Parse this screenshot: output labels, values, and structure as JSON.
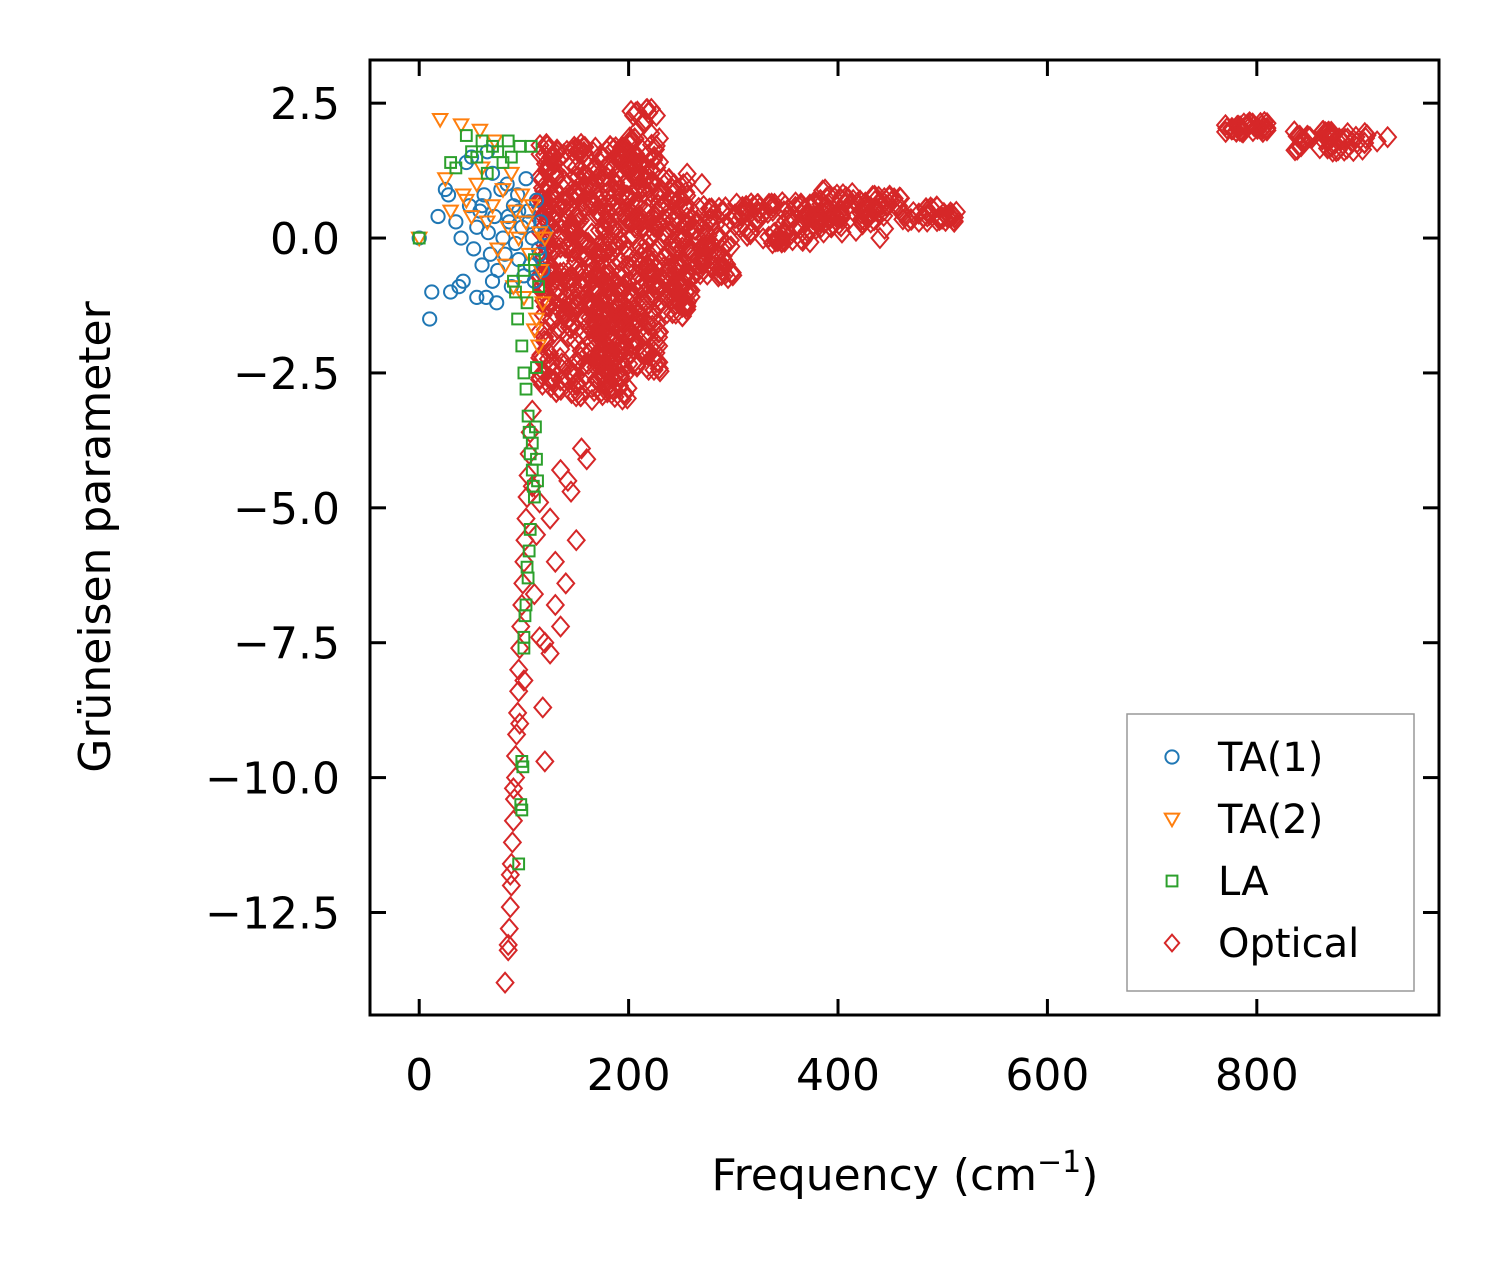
{
  "chart_data": {
    "type": "scatter",
    "title": "",
    "xlabel": "Frequency (cm",
    "xlabel_sup": "−1",
    "xlabel_suffix": ")",
    "ylabel": "Grüneisen parameter",
    "xlim": [
      -47,
      974
    ],
    "ylim": [
      -14.4,
      3.3
    ],
    "xticks": [
      0,
      200,
      400,
      600,
      800
    ],
    "xtick_labels": [
      "0",
      "200",
      "400",
      "600",
      "800"
    ],
    "yticks": [
      2.5,
      0.0,
      -2.5,
      -5.0,
      -7.5,
      -10.0,
      -12.5
    ],
    "ytick_labels": [
      "2.5",
      "0.0",
      "−2.5",
      "−5.0",
      "−7.5",
      "−10.0",
      "−12.5"
    ],
    "grid": false,
    "legend_position": "lower-right",
    "series": [
      {
        "name": "TA(1)",
        "marker": "circle",
        "color": "#1f77b4",
        "points": [
          [
            0,
            0.0
          ],
          [
            10,
            -1.5
          ],
          [
            12,
            -1.0
          ],
          [
            18,
            0.4
          ],
          [
            25,
            0.9
          ],
          [
            28,
            0.8
          ],
          [
            30,
            -1.0
          ],
          [
            35,
            0.3
          ],
          [
            38,
            -0.9
          ],
          [
            40,
            0.0
          ],
          [
            42,
            -0.8
          ],
          [
            45,
            1.4
          ],
          [
            48,
            0.6
          ],
          [
            50,
            1.5
          ],
          [
            52,
            -0.2
          ],
          [
            55,
            0.2
          ],
          [
            55,
            -1.1
          ],
          [
            58,
            0.5
          ],
          [
            60,
            -0.5
          ],
          [
            62,
            0.8
          ],
          [
            64,
            -1.1
          ],
          [
            65,
            1.6
          ],
          [
            66,
            0.1
          ],
          [
            68,
            -0.3
          ],
          [
            70,
            1.2
          ],
          [
            72,
            0.4
          ],
          [
            74,
            -1.2
          ],
          [
            75,
            -0.6
          ],
          [
            78,
            0.9
          ],
          [
            80,
            0.0
          ],
          [
            82,
            -0.3
          ],
          [
            84,
            1.0
          ],
          [
            86,
            0.3
          ],
          [
            88,
            -0.9
          ],
          [
            90,
            0.6
          ],
          [
            92,
            -0.1
          ],
          [
            94,
            0.8
          ],
          [
            95,
            -0.4
          ],
          [
            98,
            0.2
          ],
          [
            100,
            -0.7
          ],
          [
            102,
            1.1
          ],
          [
            104,
            0.5
          ],
          [
            106,
            -0.5
          ],
          [
            108,
            0.0
          ],
          [
            110,
            -0.8
          ],
          [
            112,
            0.7
          ],
          [
            114,
            -0.2
          ],
          [
            116,
            0.3
          ],
          [
            118,
            -0.6
          ],
          [
            120,
            0.1
          ],
          [
            60,
            0.6
          ],
          [
            70,
            -0.8
          ],
          [
            85,
            0.4
          ],
          [
            95,
            0.5
          ],
          [
            105,
            0.3
          ],
          [
            115,
            -0.3
          ]
        ]
      },
      {
        "name": "TA(2)",
        "marker": "triangle_down",
        "color": "#ff7f0e",
        "points": [
          [
            0,
            0.0
          ],
          [
            20,
            2.2
          ],
          [
            25,
            1.1
          ],
          [
            30,
            0.5
          ],
          [
            40,
            2.1
          ],
          [
            42,
            0.8
          ],
          [
            45,
            0.7
          ],
          [
            50,
            0.4
          ],
          [
            55,
            1.0
          ],
          [
            58,
            2.0
          ],
          [
            60,
            1.3
          ],
          [
            65,
            0.3
          ],
          [
            70,
            0.6
          ],
          [
            72,
            1.8
          ],
          [
            75,
            -0.2
          ],
          [
            80,
            0.9
          ],
          [
            82,
            -0.5
          ],
          [
            85,
            0.2
          ],
          [
            88,
            1.2
          ],
          [
            90,
            -0.9
          ],
          [
            92,
            0.5
          ],
          [
            95,
            0.0
          ],
          [
            98,
            0.8
          ],
          [
            100,
            -1.1
          ],
          [
            102,
            0.3
          ],
          [
            105,
            -0.3
          ],
          [
            108,
            0.6
          ],
          [
            110,
            -1.7
          ],
          [
            112,
            -1.5
          ],
          [
            114,
            -2.0
          ],
          [
            115,
            0.1
          ],
          [
            116,
            -0.6
          ],
          [
            118,
            -1.2
          ],
          [
            120,
            0.0
          ]
        ]
      },
      {
        "name": "LA",
        "marker": "square",
        "color": "#2ca02c",
        "points": [
          [
            0,
            0.0
          ],
          [
            30,
            1.4
          ],
          [
            35,
            1.3
          ],
          [
            45,
            1.9
          ],
          [
            50,
            1.6
          ],
          [
            55,
            1.5
          ],
          [
            60,
            1.8
          ],
          [
            65,
            1.2
          ],
          [
            70,
            1.7
          ],
          [
            75,
            1.6
          ],
          [
            80,
            1.4
          ],
          [
            85,
            1.8
          ],
          [
            88,
            1.5
          ],
          [
            90,
            -0.8
          ],
          [
            92,
            -1.0
          ],
          [
            94,
            -1.5
          ],
          [
            96,
            1.7
          ],
          [
            98,
            -2.0
          ],
          [
            100,
            -0.6
          ],
          [
            100,
            -2.5
          ],
          [
            102,
            -2.8
          ],
          [
            103,
            -1.2
          ],
          [
            104,
            -3.3
          ],
          [
            105,
            -3.6
          ],
          [
            106,
            -4.0
          ],
          [
            107,
            1.7
          ],
          [
            108,
            -4.3
          ],
          [
            108,
            -3.8
          ],
          [
            109,
            -4.6
          ],
          [
            110,
            -4.8
          ],
          [
            110,
            -0.4
          ],
          [
            111,
            -3.5
          ],
          [
            112,
            -4.1
          ],
          [
            112,
            -2.4
          ],
          [
            113,
            -4.5
          ],
          [
            114,
            -0.9
          ],
          [
            105,
            -5.8
          ],
          [
            104,
            -6.3
          ],
          [
            102,
            -6.8
          ],
          [
            100,
            -7.4
          ],
          [
            100,
            -7.6
          ],
          [
            98,
            -9.7
          ],
          [
            99,
            -9.8
          ],
          [
            97,
            -10.5
          ],
          [
            98,
            -10.6
          ],
          [
            95,
            -11.6
          ],
          [
            106,
            -5.4
          ],
          [
            103,
            -6.1
          ],
          [
            101,
            -7.0
          ]
        ]
      },
      {
        "name": "Optical",
        "marker": "diamond",
        "color": "#d62728",
        "points": []
      }
    ],
    "optical_regions": [
      {
        "x_from": 115,
        "x_to": 200,
        "y_from": -3.0,
        "y_to": 1.75
      },
      {
        "x_from": 200,
        "x_to": 230,
        "y_from": -2.5,
        "y_to": 2.4
      },
      {
        "x_from": 230,
        "x_to": 260,
        "y_from": -1.5,
        "y_to": 1.2
      },
      {
        "x_from": 260,
        "x_to": 300,
        "y_from": -0.8,
        "y_to": 0.6
      },
      {
        "x_from": 300,
        "x_to": 380,
        "y_from": -0.1,
        "y_to": 0.7
      },
      {
        "x_from": 380,
        "x_to": 460,
        "y_from": 0.1,
        "y_to": 0.9
      },
      {
        "x_from": 460,
        "x_to": 515,
        "y_from": 0.3,
        "y_to": 0.6
      },
      {
        "x_from": 770,
        "x_to": 810,
        "y_from": 1.95,
        "y_to": 2.15
      },
      {
        "x_from": 835,
        "x_to": 925,
        "y_from": 1.6,
        "y_to": 2.0
      }
    ],
    "optical_tail_points": [
      [
        82,
        -13.8
      ],
      [
        85,
        -13.2
      ],
      [
        86,
        -12.8
      ],
      [
        87,
        -12.4
      ],
      [
        88,
        -12.0
      ],
      [
        88,
        -11.6
      ],
      [
        89,
        -11.2
      ],
      [
        90,
        -10.8
      ],
      [
        91,
        -10.4
      ],
      [
        92,
        -10.0
      ],
      [
        92,
        -9.6
      ],
      [
        93,
        -9.2
      ],
      [
        94,
        -8.8
      ],
      [
        95,
        -8.4
      ],
      [
        95,
        -8.0
      ],
      [
        96,
        -7.6
      ],
      [
        97,
        -7.2
      ],
      [
        98,
        -6.8
      ],
      [
        99,
        -6.4
      ],
      [
        100,
        -6.0
      ],
      [
        101,
        -5.6
      ],
      [
        102,
        -5.2
      ],
      [
        103,
        -4.8
      ],
      [
        104,
        -4.4
      ],
      [
        105,
        -4.0
      ],
      [
        106,
        -3.6
      ],
      [
        108,
        -3.2
      ],
      [
        110,
        -6.6
      ],
      [
        112,
        -5.5
      ],
      [
        115,
        -7.4
      ],
      [
        118,
        -8.7
      ],
      [
        120,
        -9.7
      ],
      [
        125,
        -7.7
      ],
      [
        130,
        -6.0
      ],
      [
        135,
        -7.2
      ],
      [
        140,
        -6.4
      ],
      [
        150,
        -5.6
      ],
      [
        155,
        -3.9
      ],
      [
        160,
        -4.1
      ],
      [
        145,
        -4.7
      ],
      [
        135,
        -4.3
      ],
      [
        150,
        -2.7
      ],
      [
        165,
        -3.0
      ],
      [
        85,
        -13.1
      ],
      [
        87,
        -11.8
      ],
      [
        90,
        -10.2
      ],
      [
        96,
        -9.0
      ],
      [
        100,
        -8.2
      ],
      [
        120,
        -7.5
      ],
      [
        130,
        -6.8
      ],
      [
        142,
        -4.5
      ],
      [
        125,
        -5.2
      ],
      [
        115,
        -4.9
      ],
      [
        108,
        -4.6
      ],
      [
        270,
        1.0
      ],
      [
        440,
        0.0
      ]
    ]
  }
}
